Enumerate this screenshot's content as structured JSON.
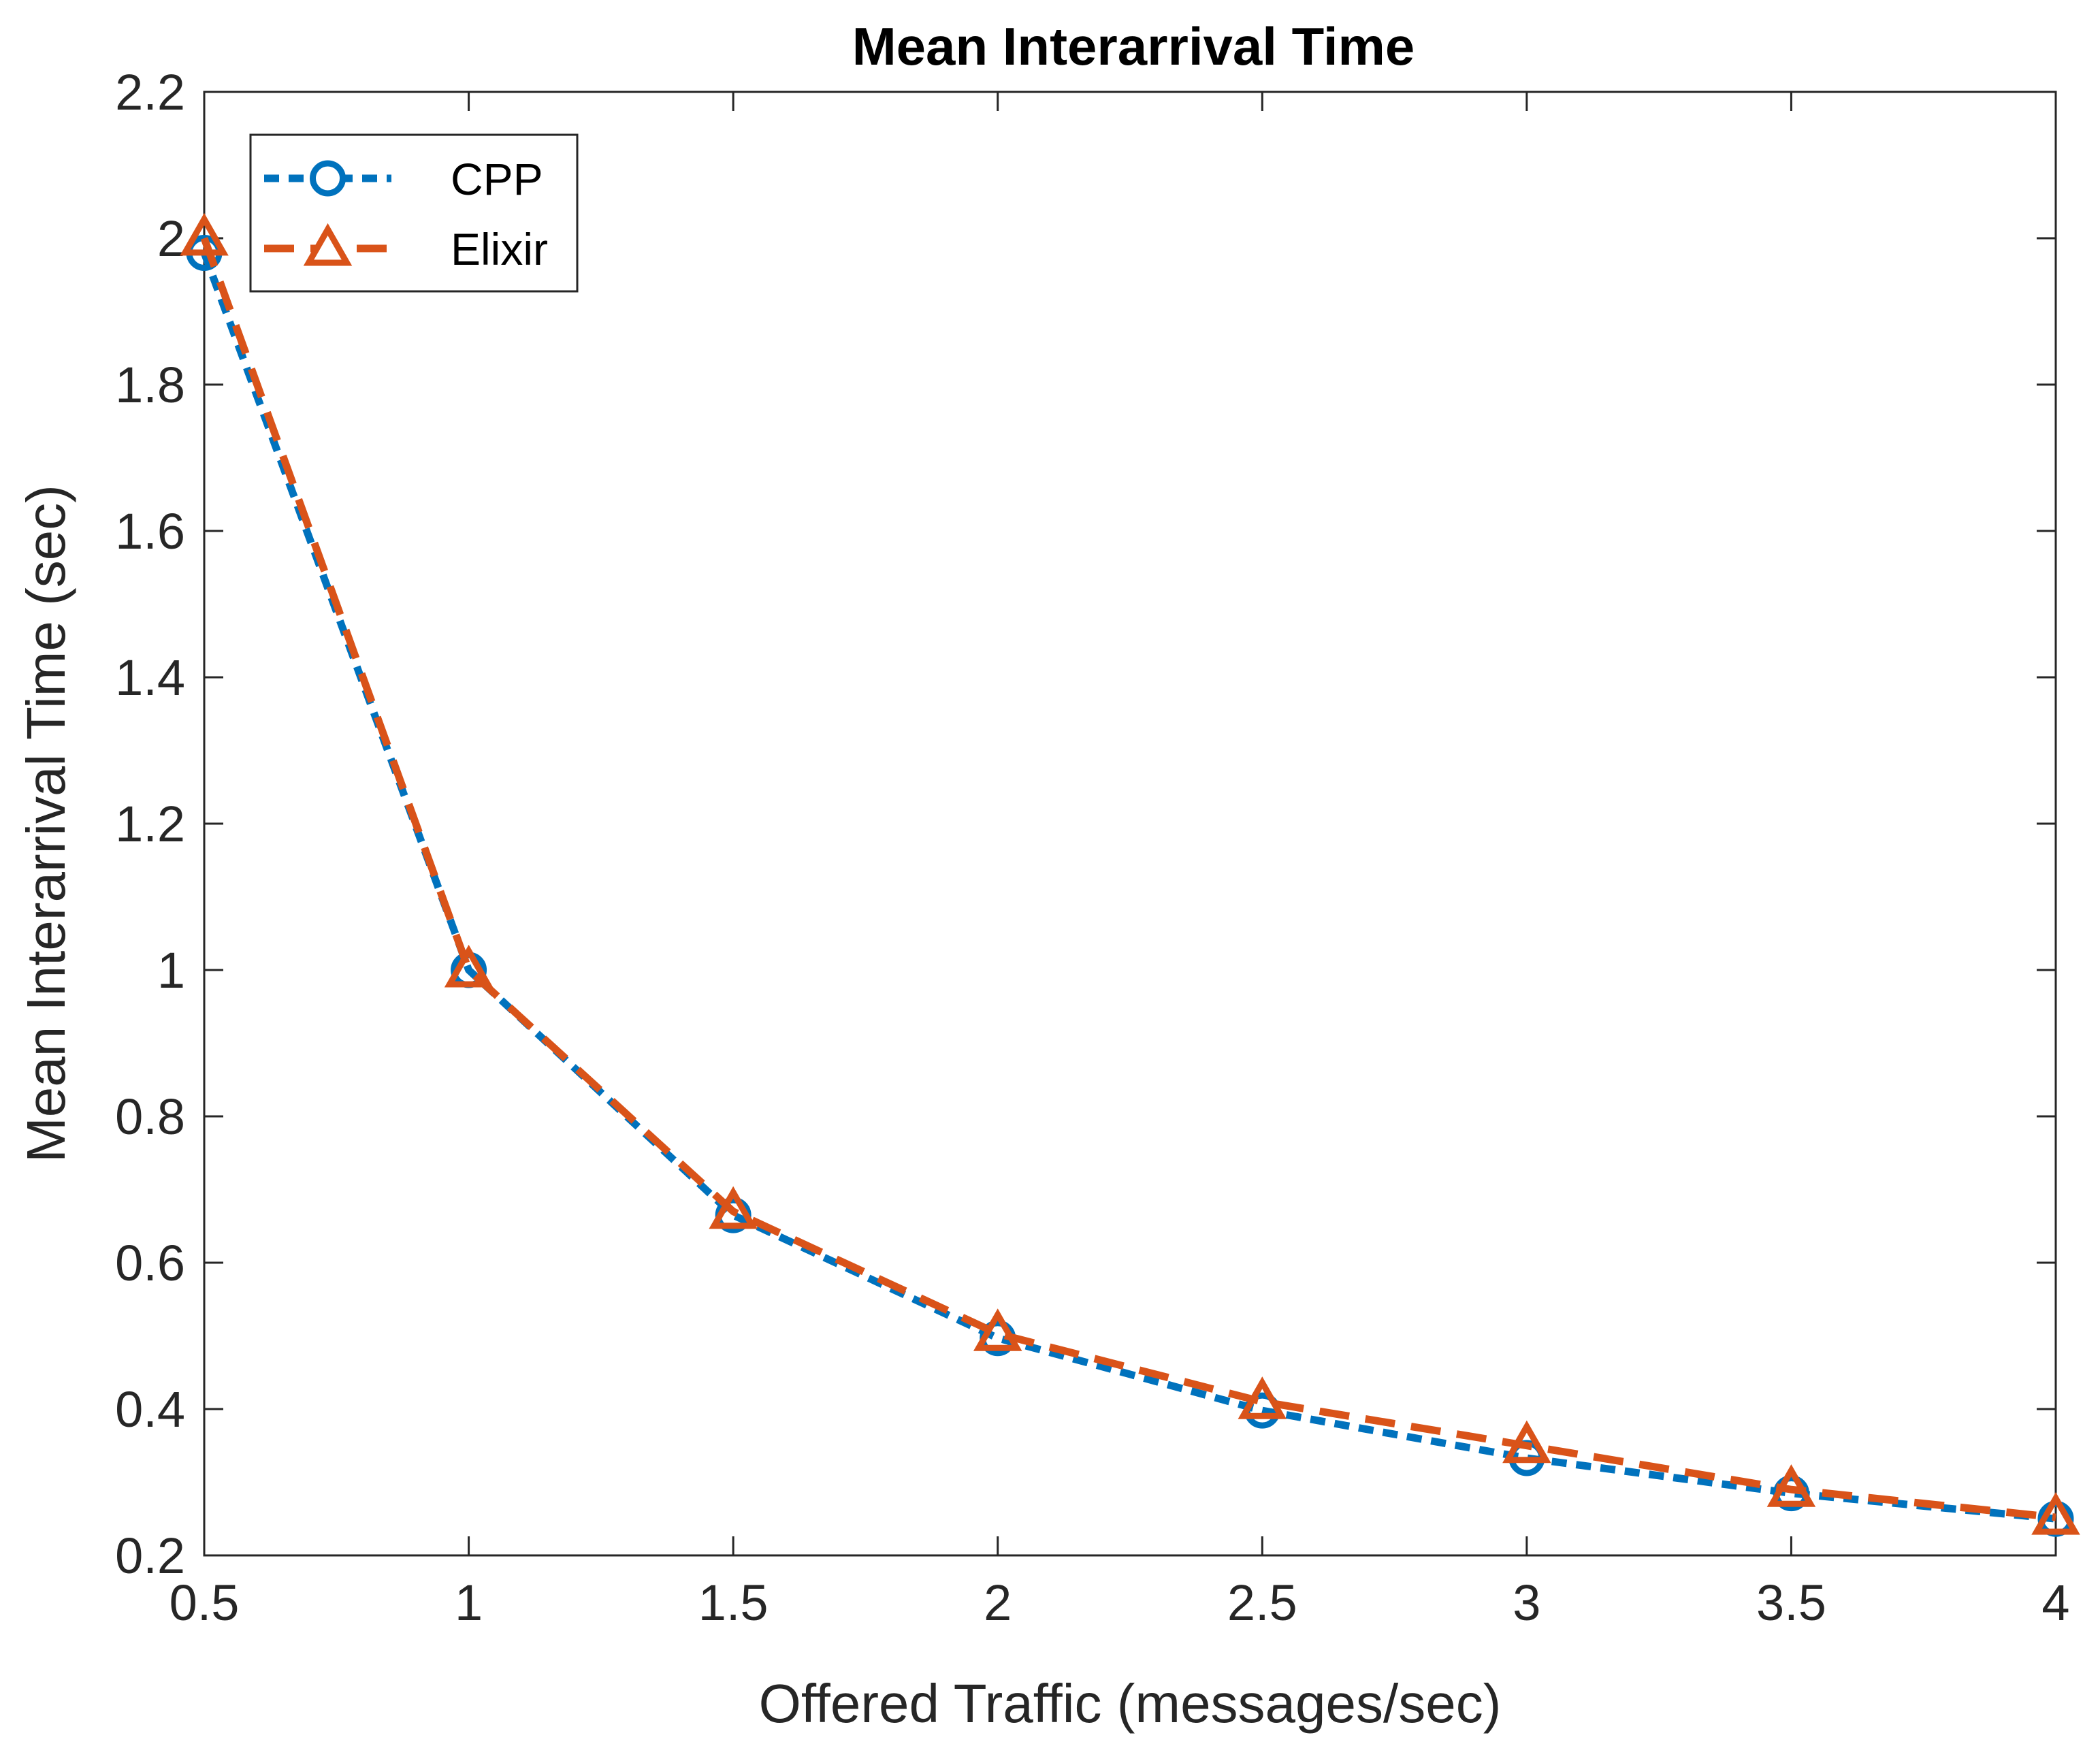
{
  "chart_data": {
    "type": "line",
    "title": "Mean Interarrival Time",
    "xlabel": "Offered Traffic (messages/sec)",
    "ylabel": "Mean Interarrival Time (sec)",
    "xlim": [
      0.5,
      4
    ],
    "ylim": [
      0.2,
      2.2
    ],
    "xticks": [
      0.5,
      1,
      1.5,
      2,
      2.5,
      3,
      3.5,
      4
    ],
    "xtick_labels": [
      "0.5",
      "1",
      "1.5",
      "2",
      "2.5",
      "3",
      "3.5",
      "4"
    ],
    "yticks": [
      0.2,
      0.4,
      0.6,
      0.8,
      1,
      1.2,
      1.4,
      1.6,
      1.8,
      2,
      2.2
    ],
    "ytick_labels": [
      "0.2",
      "0.4",
      "0.6",
      "0.8",
      "1",
      "1.2",
      "1.4",
      "1.6",
      "1.8",
      "2",
      "2.2"
    ],
    "grid": false,
    "legend_position": "top-left",
    "series": [
      {
        "name": "CPP",
        "color": "#0072BD",
        "marker": "circle",
        "line_style": "short-dash",
        "x": [
          0.5,
          1,
          1.5,
          2,
          2.5,
          3,
          3.5,
          4
        ],
        "values": [
          1.98,
          1.0,
          0.665,
          0.497,
          0.398,
          0.333,
          0.285,
          0.25
        ]
      },
      {
        "name": "Elixir",
        "color": "#D95319",
        "marker": "triangle",
        "line_style": "long-dash",
        "x": [
          0.5,
          1,
          1.5,
          2,
          2.5,
          3,
          3.5,
          4
        ],
        "values": [
          2.0,
          1.0,
          0.67,
          0.503,
          0.41,
          0.35,
          0.29,
          0.252
        ]
      }
    ]
  }
}
